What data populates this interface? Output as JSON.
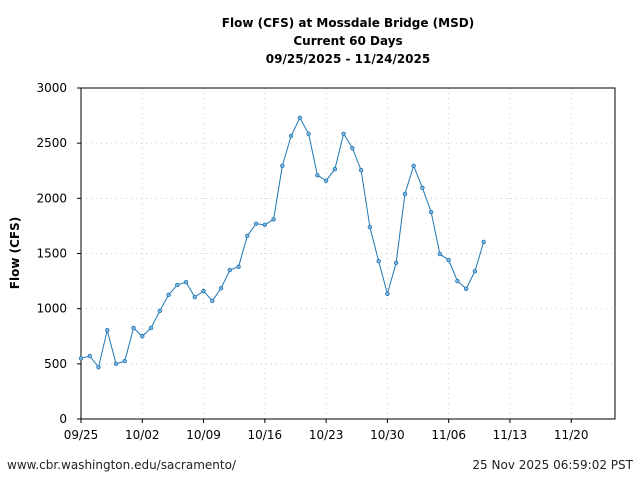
{
  "chart_data": {
    "type": "line",
    "title": [
      "Flow (CFS) at Mossdale Bridge (MSD)",
      "Current 60 Days",
      "09/25/2025 - 11/24/2025"
    ],
    "xlabel": "",
    "ylabel": "Flow (CFS)",
    "ylim": [
      0,
      3000
    ],
    "xlim": [
      "2025-09-25",
      "2025-11-25"
    ],
    "yticks": [
      0,
      500,
      1000,
      1500,
      2000,
      2500,
      3000
    ],
    "xticks": [
      {
        "label": "09/25",
        "date": "2025-09-25"
      },
      {
        "label": "10/02",
        "date": "2025-10-02"
      },
      {
        "label": "10/09",
        "date": "2025-10-09"
      },
      {
        "label": "10/16",
        "date": "2025-10-16"
      },
      {
        "label": "10/23",
        "date": "2025-10-23"
      },
      {
        "label": "10/30",
        "date": "2025-10-30"
      },
      {
        "label": "11/06",
        "date": "2025-11-06"
      },
      {
        "label": "11/13",
        "date": "2025-11-13"
      },
      {
        "label": "11/20",
        "date": "2025-11-20"
      }
    ],
    "grid": true,
    "series_color": "#1f77b4",
    "x_start": "2025-09-25",
    "values": [
      550,
      570,
      470,
      805,
      500,
      525,
      825,
      750,
      825,
      980,
      1125,
      1215,
      1240,
      1105,
      1160,
      1070,
      1185,
      1350,
      1380,
      1660,
      1770,
      1760,
      1810,
      2295,
      2565,
      2730,
      2585,
      2210,
      2160,
      2265,
      2585,
      2455,
      2255,
      1740,
      1430,
      1135,
      1415,
      2040,
      2295,
      2095,
      1875,
      1495,
      1440,
      1250,
      1180,
      1340,
      1605
    ]
  },
  "footer": {
    "source": "www.cbr.washington.edu/sacramento/",
    "timestamp": "25 Nov 2025 06:59:02 PST"
  }
}
